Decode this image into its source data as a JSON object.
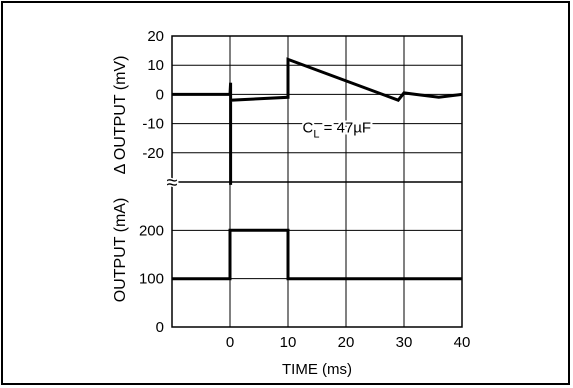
{
  "chart_data": {
    "type": "line",
    "x_axis": {
      "label": "TIME (ms)",
      "range": [
        -10,
        40
      ],
      "ticks": [
        0,
        10,
        20,
        30,
        40
      ],
      "tick_labels": [
        "0",
        "10",
        "20",
        "30",
        "40"
      ]
    },
    "grid": true,
    "axis_break_symbol": "≈",
    "panels": [
      {
        "name": "delta-output",
        "ylabel": "Δ OUTPUT (mV)",
        "ylim": [
          -30,
          20
        ],
        "yticks": [
          20,
          10,
          0,
          -10,
          -20
        ],
        "ytick_labels": [
          "20",
          "10",
          "0",
          "-10",
          "-20"
        ],
        "annotation": {
          "prefix": "C",
          "subscript": "L",
          "suffix": " = 47µF",
          "x": 12.5,
          "y": -13
        },
        "series": [
          {
            "values": [
              {
                "x": -10,
                "y": 0
              },
              {
                "x": 0,
                "y": 0
              },
              {
                "x": 0.1,
                "y": 4
              },
              {
                "x": 0.1,
                "y": -31
              },
              {
                "x": 0.1,
                "y": -2
              },
              {
                "x": 10,
                "y": -1
              },
              {
                "x": 10,
                "y": 12
              },
              {
                "x": 29,
                "y": -2
              },
              {
                "x": 30,
                "y": 0.5
              },
              {
                "x": 32,
                "y": 0
              },
              {
                "x": 36,
                "y": -1
              },
              {
                "x": 40,
                "y": 0
              }
            ]
          }
        ]
      },
      {
        "name": "output-current",
        "ylabel": "OUTPUT (mA)",
        "ylim": [
          0,
          300
        ],
        "yticks": [
          200,
          100,
          0
        ],
        "ytick_labels": [
          "200",
          "100",
          "0"
        ],
        "series": [
          {
            "values": [
              {
                "x": -10,
                "y": 100
              },
              {
                "x": 0,
                "y": 100
              },
              {
                "x": 0,
                "y": 200
              },
              {
                "x": 10,
                "y": 200
              },
              {
                "x": 10,
                "y": 100
              },
              {
                "x": 40,
                "y": 100
              }
            ]
          }
        ]
      }
    ]
  }
}
